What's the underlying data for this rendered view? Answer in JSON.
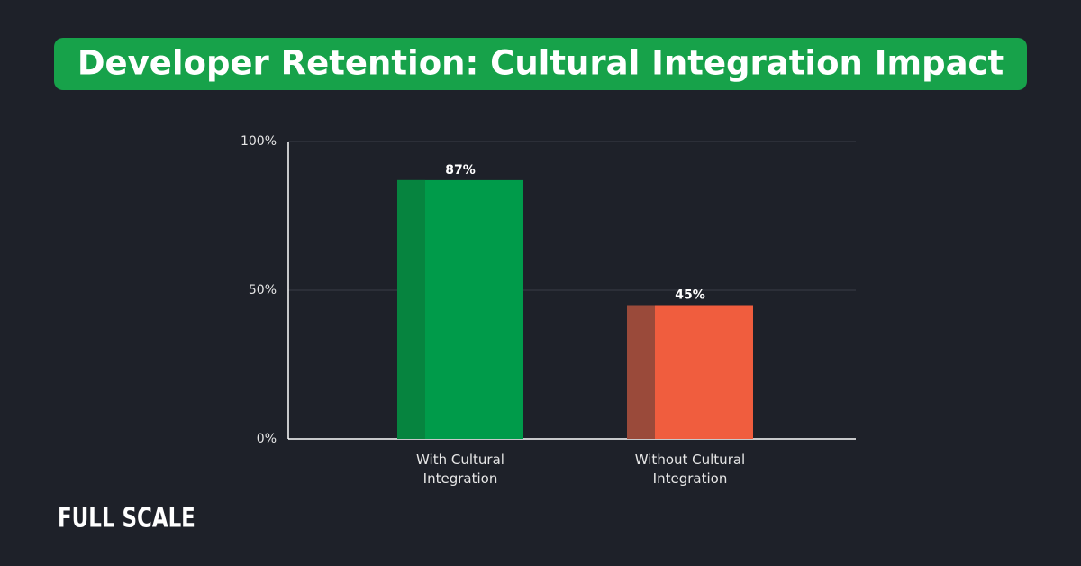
{
  "chart_data": {
    "type": "bar",
    "title": "Developer Retention: Cultural Integration Impact",
    "categories": [
      "With Cultural Integration",
      "Without Cultural Integration"
    ],
    "values": [
      87,
      45
    ],
    "value_labels": [
      "87%",
      "45%"
    ],
    "colors": [
      "#009b4a",
      "#f05d3e"
    ],
    "shade_colors": [
      "#06843f",
      "#9a4a3a"
    ],
    "ylim": [
      0,
      100
    ],
    "yticks": [
      {
        "value": 0,
        "label": "0%"
      },
      {
        "value": 50,
        "label": "50%"
      },
      {
        "value": 100,
        "label": "100%"
      }
    ],
    "grid": true
  },
  "brand": "FULL SCALE"
}
